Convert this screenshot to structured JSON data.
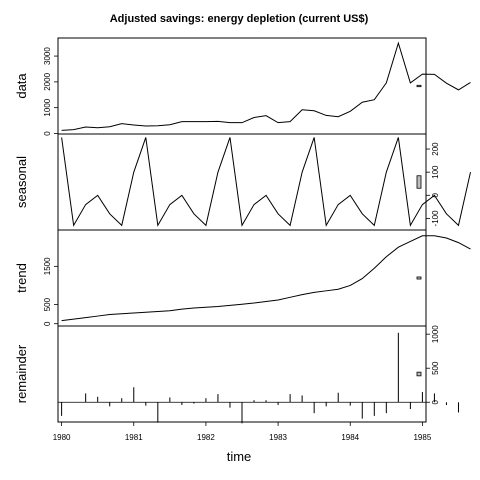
{
  "chart_data": {
    "type": "line",
    "title": "Adjusted savings: energy depletion (current US$)",
    "xlabel": "time",
    "xlim": [
      1979.95,
      1985.05
    ],
    "x_ticks": [
      1980,
      1981,
      1982,
      1983,
      1984,
      1985
    ],
    "x_tick_labels": [
      "1980",
      "1981",
      "1982",
      "1983",
      "1984",
      "1985"
    ],
    "x_start": 1980,
    "x_step": 0.16667,
    "panels": [
      {
        "name": "data",
        "ylabel": "data",
        "style": "line",
        "ylim": [
          -20,
          3700
        ],
        "ticks": [
          0,
          1000,
          2000,
          3000
        ],
        "tick_labels": [
          "0",
          "1000",
          "2000",
          "3000"
        ],
        "tick_side": "left",
        "values": [
          120,
          150,
          250,
          220,
          260,
          380,
          330,
          290,
          300,
          340,
          460,
          460,
          460,
          470,
          420,
          420,
          620,
          690,
          420,
          460,
          920,
          880,
          700,
          650,
          860,
          1210,
          1310,
          1960,
          3500,
          1960,
          2300,
          2290,
          1950,
          1690,
          1980
        ]
      },
      {
        "name": "seasonal",
        "ylabel": "seasonal",
        "style": "line",
        "ylim": [
          -150,
          265
        ],
        "ticks": [
          -100,
          0,
          100,
          200
        ],
        "tick_labels": [
          "-100",
          "0",
          "100",
          "200"
        ],
        "tick_side": "right",
        "values": [
          250,
          -130,
          -40,
          0,
          -80,
          -130,
          100,
          250,
          -130,
          -40,
          0,
          -80,
          -130,
          100,
          250,
          -130,
          -40,
          0,
          -80,
          -130,
          100,
          250,
          -130,
          -40,
          0,
          -80,
          -130,
          100,
          250,
          -130,
          -40,
          0,
          -80,
          -130,
          100
        ]
      },
      {
        "name": "trend",
        "ylabel": "trend",
        "style": "line",
        "ylim": [
          -60,
          2450
        ],
        "ticks": [
          0,
          500,
          1500
        ],
        "tick_labels": [
          "0",
          "500",
          "1500"
        ],
        "tick_side": "left",
        "values": [
          80,
          120,
          160,
          200,
          240,
          260,
          280,
          300,
          320,
          340,
          380,
          410,
          430,
          450,
          480,
          510,
          540,
          580,
          620,
          690,
          760,
          820,
          860,
          900,
          1000,
          1180,
          1450,
          1750,
          2000,
          2150,
          2300,
          2300,
          2240,
          2120,
          1950
        ]
      },
      {
        "name": "remainder",
        "ylabel": "remainder",
        "style": "bars",
        "ylim": [
          -290,
          1120
        ],
        "ticks": [
          0,
          500,
          1000
        ],
        "tick_labels": [
          "0",
          "500",
          "1000"
        ],
        "tick_side": "right",
        "values": [
          -200,
          0,
          130,
          80,
          -60,
          60,
          220,
          -50,
          -300,
          70,
          -40,
          -20,
          60,
          120,
          -80,
          -310,
          30,
          30,
          -40,
          120,
          100,
          -160,
          -60,
          140,
          -50,
          -240,
          -200,
          -160,
          1020,
          -100,
          150,
          130,
          -40,
          -150,
          0
        ]
      }
    ]
  }
}
